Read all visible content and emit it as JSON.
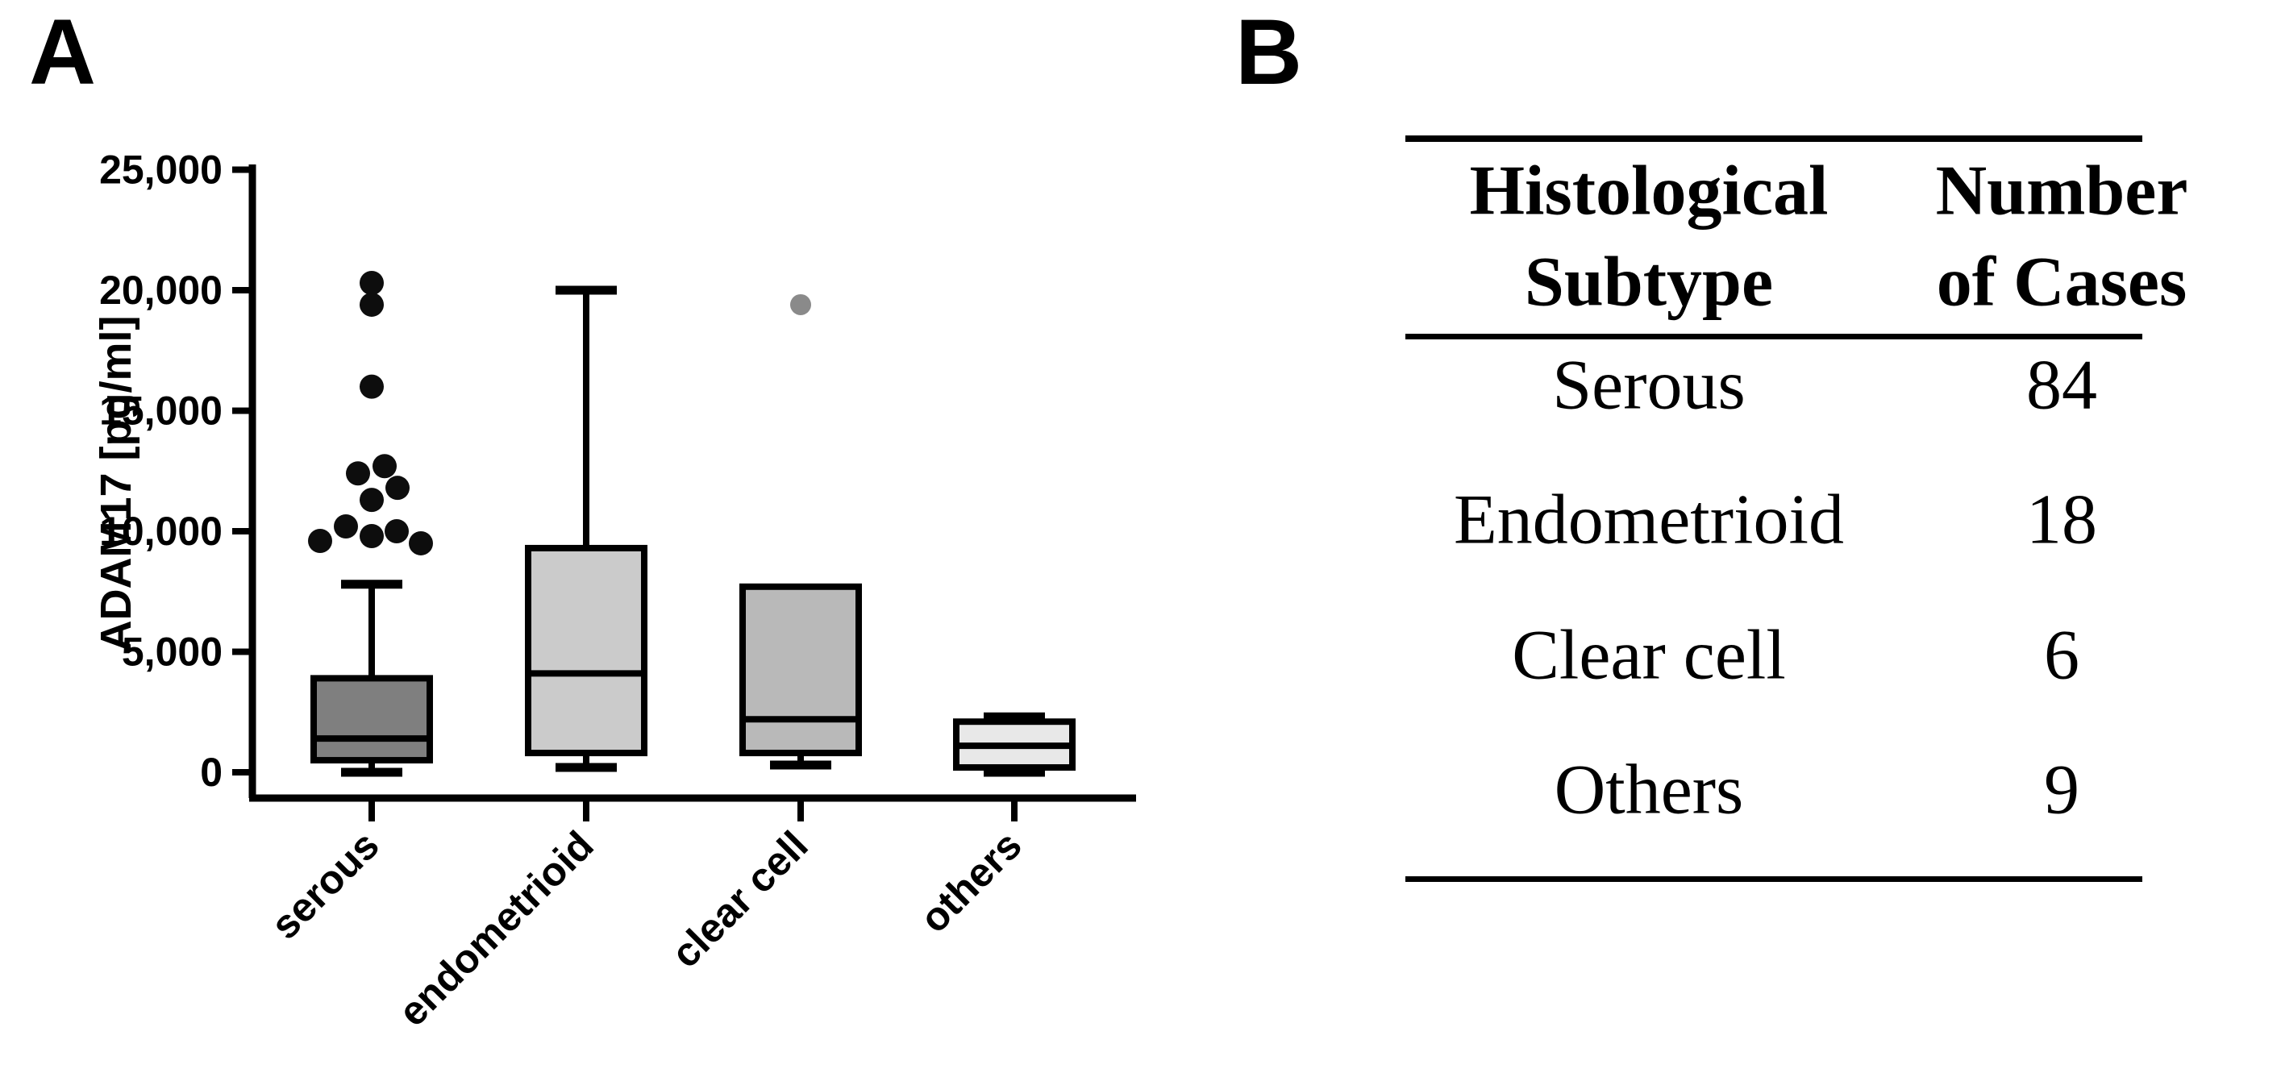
{
  "panels": {
    "a_label": "A",
    "b_label": "B"
  },
  "chart_data": {
    "type": "box",
    "title": "",
    "xlabel": "",
    "ylabel": "ADAM17 [pg/ml]",
    "ylim": [
      0,
      25000
    ],
    "yticks": [
      0,
      5000,
      10000,
      15000,
      20000,
      25000
    ],
    "ytick_labels": [
      "0",
      "5,000",
      "10,000",
      "15,000",
      "20,000",
      "25,000"
    ],
    "grid": false,
    "legend_position": "none",
    "categories": [
      "serous",
      "endometrioid",
      "clear cell",
      "others"
    ],
    "series": [
      {
        "name": "serous",
        "min": 0,
        "q1": 500,
        "median": 1400,
        "q3": 3900,
        "max": 7800,
        "fill": "#7f7f7f",
        "outlier_color": "#0d0d0d",
        "outliers": [
          20300,
          19400,
          16000,
          12700,
          12400,
          11800,
          11300,
          10200,
          10000,
          9800,
          9600,
          9500
        ],
        "outlier_dx": [
          0,
          0,
          0,
          16,
          -17,
          32,
          0,
          -32,
          31,
          0,
          -64,
          61
        ]
      },
      {
        "name": "endometrioid",
        "min": 200,
        "q1": 800,
        "median": 4100,
        "q3": 9300,
        "max": 20000,
        "fill": "#cbcbcb",
        "outlier_color": "#0d0d0d",
        "outliers": [],
        "outlier_dx": []
      },
      {
        "name": "clear cell",
        "min": 300,
        "q1": 800,
        "median": 2200,
        "q3": 7700,
        "max": 7700,
        "no_upper_whisker": true,
        "fill": "#b9b9b9",
        "outlier_color": "#8a8a8a",
        "outliers": [
          19400
        ],
        "outlier_dx": [
          0
        ]
      },
      {
        "name": "others",
        "min": 0,
        "q1": 200,
        "median": 1100,
        "q3": 2100,
        "max": 2300,
        "fill": "#e8e8e8",
        "outlier_color": "#0d0d0d",
        "outliers": [],
        "outlier_dx": []
      }
    ]
  },
  "table": {
    "col_headers": [
      {
        "line1": "Histological",
        "line2": "Subtype"
      },
      {
        "line1": "Number",
        "line2": "of Cases"
      }
    ],
    "rows": [
      {
        "subtype": "Serous",
        "cases": "84"
      },
      {
        "subtype": "Endometrioid",
        "cases": "18"
      },
      {
        "subtype": "Clear cell",
        "cases": "6"
      },
      {
        "subtype": "Others",
        "cases": "9"
      }
    ]
  }
}
